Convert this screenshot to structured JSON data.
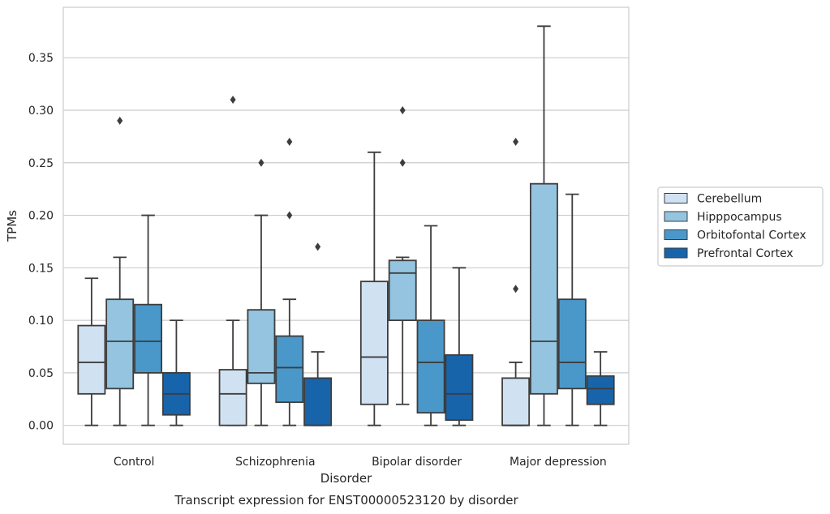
{
  "chart_data": {
    "type": "box",
    "caption": "Transcript expression for ENST00000523120 by disorder",
    "xlabel": "Disorder",
    "ylabel": "TPMs",
    "ylim": [
      -0.018,
      0.398
    ],
    "yticks": [
      "0.00",
      "0.05",
      "0.10",
      "0.15",
      "0.20",
      "0.25",
      "0.30",
      "0.35"
    ],
    "categories": [
      "Control",
      "Schizophrenia",
      "Bipolar disorder",
      "Major depression"
    ],
    "grid": true,
    "legend_position": "right",
    "series": [
      {
        "name": "Cerebellum",
        "color": "#d0e1f2",
        "boxes": [
          {
            "whislo": 0.0,
            "q1": 0.03,
            "med": 0.06,
            "q3": 0.095,
            "whishi": 0.14,
            "fliers": []
          },
          {
            "whislo": 0.0,
            "q1": 0.0,
            "med": 0.03,
            "q3": 0.053,
            "whishi": 0.1,
            "fliers": [
              0.31
            ]
          },
          {
            "whislo": 0.0,
            "q1": 0.02,
            "med": 0.065,
            "q3": 0.137,
            "whishi": 0.26,
            "fliers": []
          },
          {
            "whislo": 0.0,
            "q1": 0.0,
            "med": 0.0,
            "q3": 0.045,
            "whishi": 0.06,
            "fliers": [
              0.13,
              0.27
            ]
          }
        ]
      },
      {
        "name": "Hipppocampus",
        "color": "#94c4df",
        "boxes": [
          {
            "whislo": 0.0,
            "q1": 0.035,
            "med": 0.08,
            "q3": 0.12,
            "whishi": 0.16,
            "fliers": [
              0.29
            ]
          },
          {
            "whislo": 0.0,
            "q1": 0.04,
            "med": 0.05,
            "q3": 0.11,
            "whishi": 0.2,
            "fliers": [
              0.25
            ]
          },
          {
            "whislo": 0.02,
            "q1": 0.1,
            "med": 0.145,
            "q3": 0.157,
            "whishi": 0.16,
            "fliers": [
              0.25,
              0.3
            ]
          },
          {
            "whislo": 0.0,
            "q1": 0.03,
            "med": 0.08,
            "q3": 0.23,
            "whishi": 0.38,
            "fliers": []
          }
        ]
      },
      {
        "name": "Orbitofontal Cortex",
        "color": "#4a98c9",
        "boxes": [
          {
            "whislo": 0.0,
            "q1": 0.05,
            "med": 0.08,
            "q3": 0.115,
            "whishi": 0.2,
            "fliers": []
          },
          {
            "whislo": 0.0,
            "q1": 0.022,
            "med": 0.055,
            "q3": 0.085,
            "whishi": 0.12,
            "fliers": [
              0.2,
              0.27
            ]
          },
          {
            "whislo": 0.0,
            "q1": 0.012,
            "med": 0.06,
            "q3": 0.1,
            "whishi": 0.19,
            "fliers": []
          },
          {
            "whislo": 0.0,
            "q1": 0.035,
            "med": 0.06,
            "q3": 0.12,
            "whishi": 0.22,
            "fliers": []
          }
        ]
      },
      {
        "name": "Prefrontal Cortex",
        "color": "#1764ab",
        "boxes": [
          {
            "whislo": 0.0,
            "q1": 0.01,
            "med": 0.03,
            "q3": 0.05,
            "whishi": 0.1,
            "fliers": []
          },
          {
            "whislo": 0.0,
            "q1": 0.0,
            "med": 0.0,
            "q3": 0.045,
            "whishi": 0.07,
            "fliers": [
              0.17
            ]
          },
          {
            "whislo": 0.0,
            "q1": 0.005,
            "med": 0.03,
            "q3": 0.067,
            "whishi": 0.15,
            "fliers": []
          },
          {
            "whislo": 0.0,
            "q1": 0.02,
            "med": 0.035,
            "q3": 0.047,
            "whishi": 0.07,
            "fliers": []
          }
        ]
      }
    ]
  }
}
